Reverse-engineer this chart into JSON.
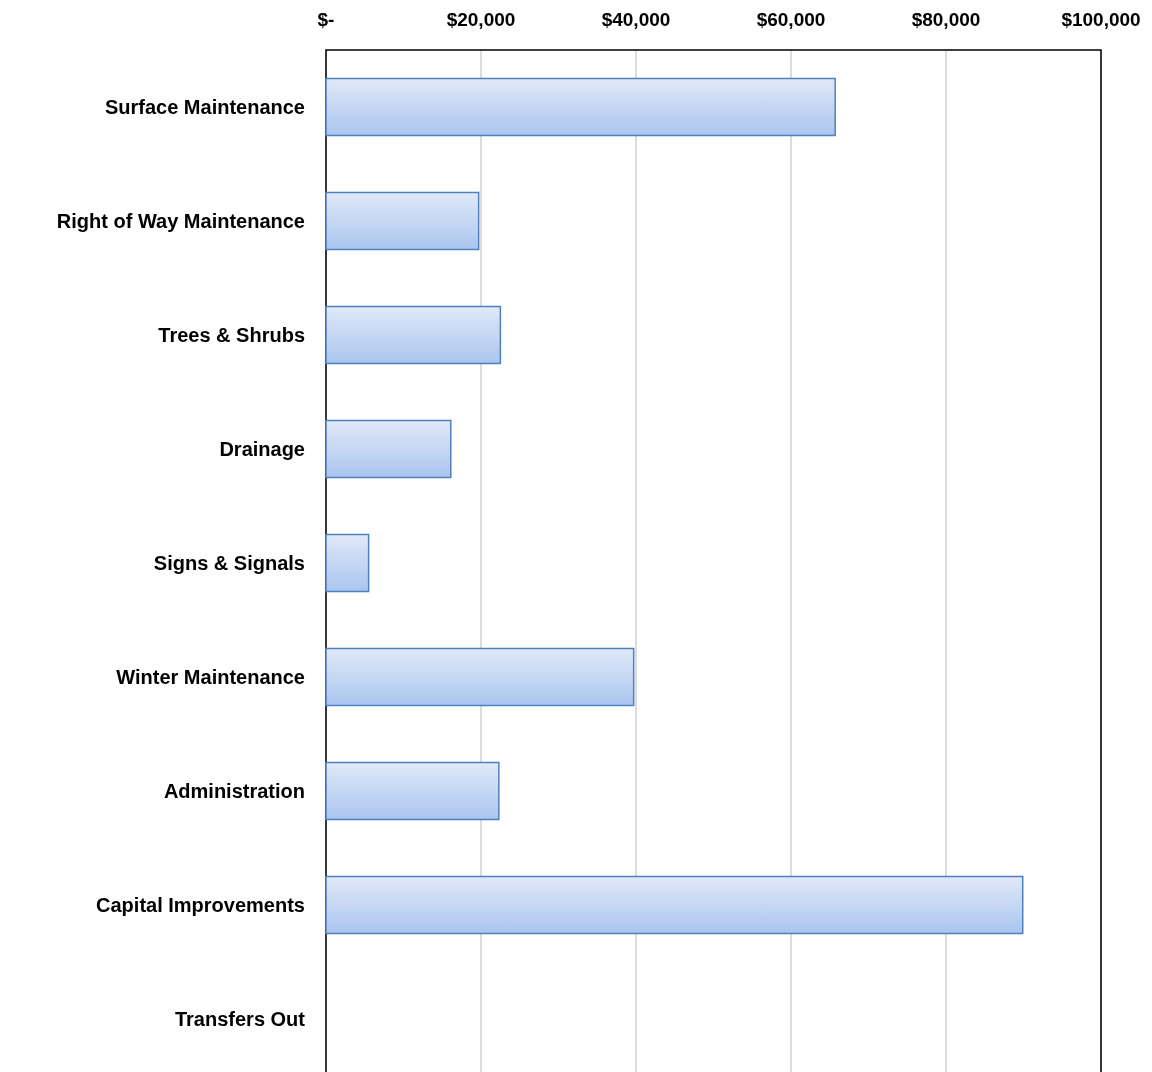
{
  "chart_data": {
    "type": "bar",
    "orientation": "horizontal",
    "categories": [
      "Surface Maintenance",
      "Right of Way Maintenance",
      "Trees & Shrubs",
      "Drainage",
      "Signs & Signals",
      "Winter Maintenance",
      "Administration",
      "Capital Improvements",
      "Transfers Out"
    ],
    "values": [
      65700,
      19700,
      22500,
      16100,
      5500,
      39700,
      22300,
      89900,
      0
    ],
    "color": "#4f81bd",
    "xlim": [
      0,
      100000
    ],
    "xticks": [
      {
        "value": 0,
        "label": "$-"
      },
      {
        "value": 20000,
        "label": "$20,000"
      },
      {
        "value": 40000,
        "label": "$40,000"
      },
      {
        "value": 60000,
        "label": "$60,000"
      },
      {
        "value": 80000,
        "label": "$80,000"
      },
      {
        "value": 100000,
        "label": "$100,000"
      }
    ],
    "grid": "x"
  }
}
